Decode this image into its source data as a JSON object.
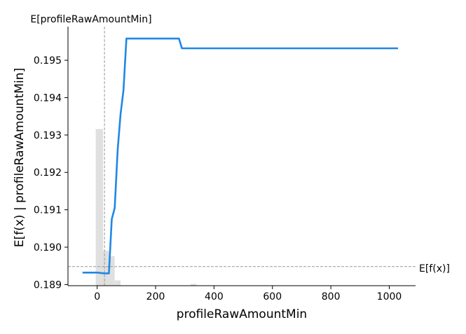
{
  "chart_data": {
    "type": "line",
    "title": "",
    "xlabel": "profileRawAmountMin",
    "ylabel": "E[f(x) | profileRawAmountMin]",
    "xlim": [
      -100,
      1090
    ],
    "ylim": [
      0.18897,
      0.1959
    ],
    "x_ticks": [
      0,
      200,
      400,
      600,
      800,
      1000
    ],
    "y_ticks": [
      0.189,
      0.19,
      0.191,
      0.192,
      0.193,
      0.194,
      0.195
    ],
    "x_tick_labels": [
      "0",
      "200",
      "400",
      "600",
      "800",
      "1000"
    ],
    "y_tick_labels": [
      "0.189",
      "0.190",
      "0.191",
      "0.192",
      "0.193",
      "0.194",
      "0.195"
    ],
    "grid": false,
    "series": [
      {
        "color": "#1e88e5",
        "x": [
          -50,
          0,
          25,
          40,
          50,
          60,
          70,
          80,
          90,
          100,
          200,
          280,
          290,
          400,
          600,
          800,
          1030
        ],
        "y": [
          0.18932,
          0.18932,
          0.1893,
          0.1893,
          0.19075,
          0.19105,
          0.1926,
          0.19355,
          0.1942,
          0.19558,
          0.19558,
          0.19558,
          0.19532,
          0.19532,
          0.19532,
          0.19532,
          0.19532
        ]
      }
    ],
    "histogram": {
      "color": "#e0e0e0",
      "bins": [
        {
          "x0": -5,
          "x1": 20,
          "fraction": 0.9
        },
        {
          "x0": 20,
          "x1": 40,
          "fraction": 0.2
        },
        {
          "x0": 40,
          "x1": 60,
          "fraction": 0.17
        },
        {
          "x0": 60,
          "x1": 80,
          "fraction": 0.03
        },
        {
          "x0": 320,
          "x1": 340,
          "fraction": 0.01
        }
      ]
    },
    "annotations": [
      {
        "label": "E[profileRawAmountMin]",
        "orientation": "vertical",
        "value": 25,
        "color": "#999999"
      },
      {
        "label": "E[f(x)]",
        "orientation": "horizontal",
        "value": 0.18948,
        "color": "#999999"
      }
    ]
  }
}
